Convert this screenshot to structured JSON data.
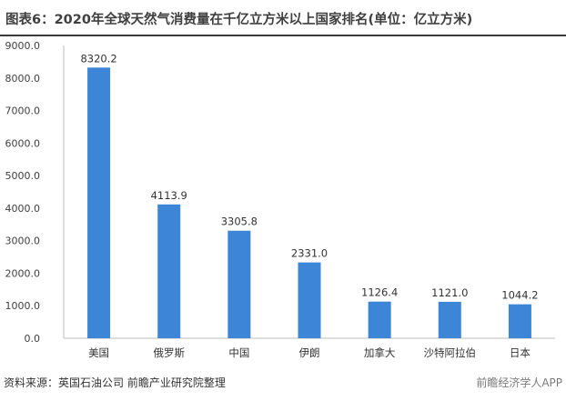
{
  "header": {
    "title": "图表6：2020年全球天然气消费量在千亿立方米以上国家排名(单位：亿立方米)"
  },
  "footer": {
    "source": "资料来源：英国石油公司 前瞻产业研究院整理",
    "watermark": "前瞻经济学人APP"
  },
  "chart_data": {
    "type": "bar",
    "title": "图表6：2020年全球天然气消费量在千亿立方米以上国家排名(单位：亿立方米)",
    "categories": [
      "美国",
      "俄罗斯",
      "中国",
      "伊朗",
      "加拿大",
      "沙特阿拉伯",
      "日本"
    ],
    "values": [
      8320.2,
      4113.9,
      3305.8,
      2331.0,
      1126.4,
      1121.0,
      1044.2
    ],
    "value_labels": [
      "8320.2",
      "4113.9",
      "3305.8",
      "2331.0",
      "1126.4",
      "1121.0",
      "1044.2"
    ],
    "yticks": [
      "0.0",
      "1000.0",
      "2000.0",
      "3000.0",
      "4000.0",
      "5000.0",
      "6000.0",
      "7000.0",
      "8000.0",
      "9000.0"
    ],
    "ylim": [
      0,
      9000
    ],
    "xlabel": "",
    "ylabel": "",
    "grid": false,
    "bar_color": "#3d85d6"
  }
}
